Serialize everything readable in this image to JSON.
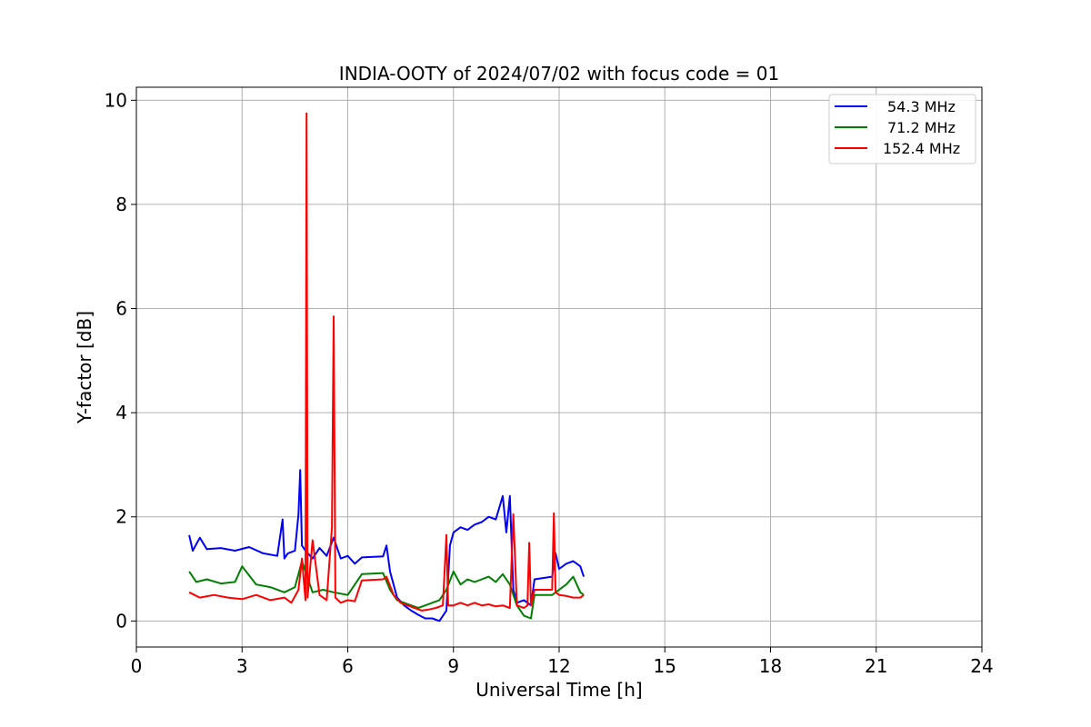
{
  "chart_data": {
    "type": "line",
    "title": "INDIA-OOTY of 2024/07/02 with focus code = 01",
    "xlabel": "Universal Time [h]",
    "ylabel": "Y-factor [dB]",
    "xlim": [
      0,
      24
    ],
    "ylim": [
      -0.5,
      10.25
    ],
    "xticks": [
      0,
      3,
      6,
      9,
      12,
      15,
      18,
      21,
      24
    ],
    "yticks": [
      0,
      2,
      4,
      6,
      8,
      10
    ],
    "xtick_labels": [
      "0",
      "3",
      "6",
      "9",
      "12",
      "15",
      "18",
      "21",
      "24"
    ],
    "ytick_labels": [
      "0",
      "2",
      "4",
      "6",
      "8",
      "10"
    ],
    "grid": true,
    "legend_position": "top-right",
    "series": [
      {
        "name": "54.3 MHz",
        "color": "#0000ff",
        "x": [
          1.5,
          1.6,
          1.8,
          2.0,
          2.4,
          2.8,
          3.2,
          3.6,
          4.0,
          4.15,
          4.2,
          4.3,
          4.5,
          4.6,
          4.65,
          4.7,
          4.8,
          5.0,
          5.2,
          5.4,
          5.6,
          5.8,
          6.0,
          6.2,
          6.4,
          7.0,
          7.1,
          7.2,
          7.3,
          7.4,
          7.6,
          7.8,
          8.0,
          8.2,
          8.4,
          8.6,
          8.8,
          8.9,
          9.0,
          9.2,
          9.4,
          9.6,
          9.8,
          10.0,
          10.2,
          10.4,
          10.5,
          10.6,
          10.7,
          10.8,
          11.0,
          11.2,
          11.3,
          11.8,
          11.9,
          12.0,
          12.2,
          12.4,
          12.6,
          12.7
        ],
        "y": [
          1.65,
          1.35,
          1.6,
          1.38,
          1.4,
          1.35,
          1.42,
          1.3,
          1.25,
          1.95,
          1.2,
          1.3,
          1.35,
          2.05,
          2.9,
          1.45,
          1.35,
          1.2,
          1.4,
          1.25,
          1.6,
          1.2,
          1.25,
          1.1,
          1.22,
          1.24,
          1.45,
          0.95,
          0.7,
          0.45,
          0.3,
          0.2,
          0.12,
          0.05,
          0.05,
          0.0,
          0.2,
          1.45,
          1.7,
          1.8,
          1.75,
          1.85,
          1.9,
          2.0,
          1.95,
          2.4,
          1.7,
          2.4,
          0.6,
          0.35,
          0.4,
          0.3,
          0.8,
          0.85,
          1.3,
          1.0,
          1.1,
          1.15,
          1.05,
          0.85
        ]
      },
      {
        "name": "71.2 MHz",
        "color": "#008000",
        "x": [
          1.5,
          1.7,
          2.0,
          2.4,
          2.8,
          3.0,
          3.4,
          3.8,
          4.2,
          4.5,
          4.7,
          5.0,
          5.3,
          5.6,
          6.0,
          6.4,
          7.0,
          7.2,
          7.4,
          7.6,
          7.8,
          8.0,
          8.2,
          8.4,
          8.6,
          8.8,
          9.0,
          9.2,
          9.4,
          9.6,
          9.8,
          10.0,
          10.2,
          10.4,
          10.6,
          10.8,
          11.0,
          11.2,
          11.3,
          11.8,
          12.0,
          12.2,
          12.4,
          12.6,
          12.7
        ],
        "y": [
          0.95,
          0.75,
          0.8,
          0.72,
          0.75,
          1.05,
          0.7,
          0.65,
          0.55,
          0.65,
          1.15,
          0.55,
          0.6,
          0.55,
          0.5,
          0.9,
          0.92,
          0.6,
          0.4,
          0.35,
          0.3,
          0.25,
          0.3,
          0.35,
          0.4,
          0.6,
          0.95,
          0.7,
          0.8,
          0.75,
          0.8,
          0.85,
          0.75,
          0.9,
          0.7,
          0.3,
          0.1,
          0.05,
          0.5,
          0.5,
          0.6,
          0.7,
          0.85,
          0.55,
          0.5
        ]
      },
      {
        "name": "152.4 MHz",
        "color": "#ff0000",
        "x": [
          1.5,
          1.8,
          2.2,
          2.6,
          3.0,
          3.4,
          3.8,
          4.2,
          4.4,
          4.6,
          4.7,
          4.8,
          4.83,
          4.86,
          5.0,
          5.2,
          5.4,
          5.55,
          5.6,
          5.65,
          5.8,
          6.0,
          6.2,
          6.4,
          7.0,
          7.1,
          7.3,
          7.5,
          7.7,
          7.9,
          8.1,
          8.3,
          8.5,
          8.7,
          8.8,
          8.85,
          9.0,
          9.2,
          9.4,
          9.6,
          9.8,
          10.0,
          10.2,
          10.4,
          10.6,
          10.7,
          10.8,
          11.0,
          11.1,
          11.15,
          11.2,
          11.3,
          11.8,
          11.85,
          11.9,
          12.0,
          12.2,
          12.4,
          12.6,
          12.7
        ],
        "y": [
          0.55,
          0.45,
          0.5,
          0.45,
          0.42,
          0.5,
          0.4,
          0.45,
          0.35,
          0.6,
          1.2,
          0.4,
          9.75,
          0.45,
          1.55,
          0.5,
          0.4,
          1.8,
          5.85,
          0.45,
          0.35,
          0.4,
          0.38,
          0.78,
          0.8,
          0.85,
          0.5,
          0.35,
          0.3,
          0.25,
          0.2,
          0.22,
          0.25,
          0.3,
          1.65,
          0.3,
          0.3,
          0.35,
          0.3,
          0.35,
          0.3,
          0.32,
          0.28,
          0.3,
          0.25,
          2.05,
          0.3,
          0.25,
          0.3,
          1.5,
          0.3,
          0.6,
          0.6,
          2.07,
          0.55,
          0.5,
          0.48,
          0.45,
          0.45,
          0.5
        ]
      }
    ]
  }
}
